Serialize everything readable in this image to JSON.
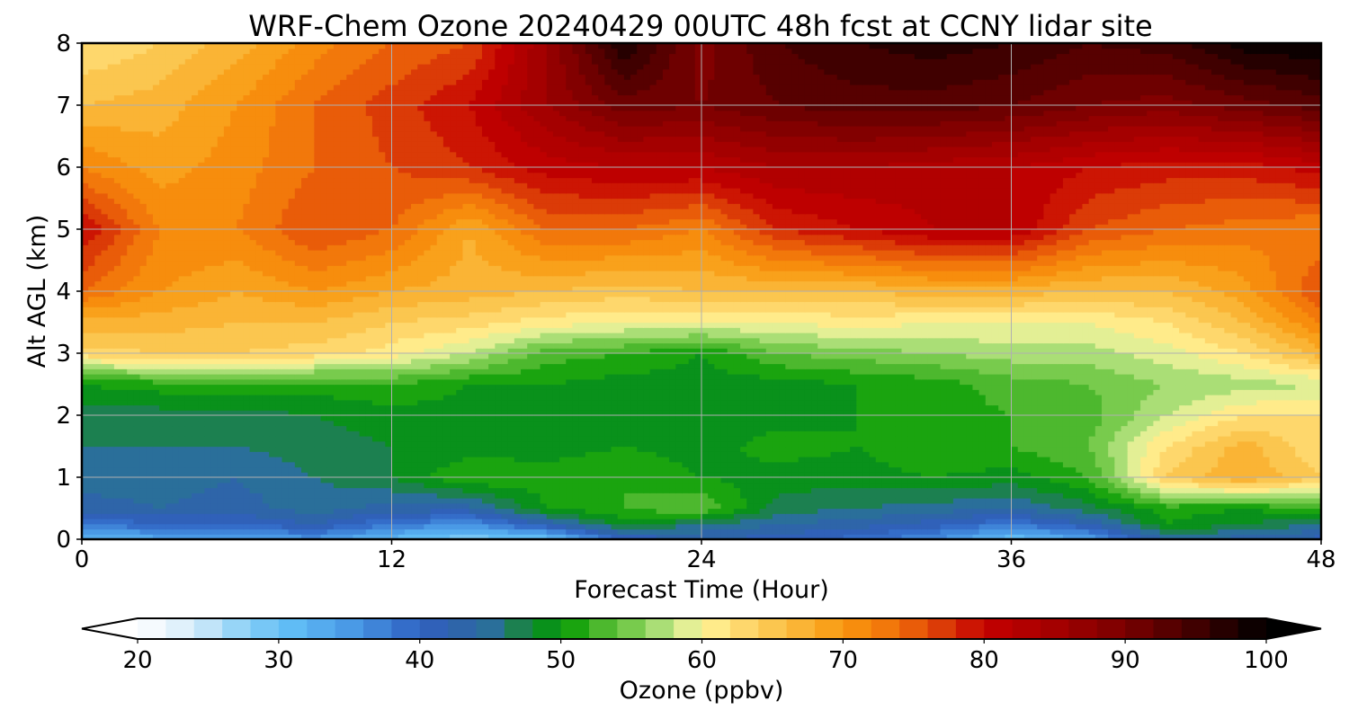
{
  "chart_data": {
    "type": "heatmap",
    "title": "WRF-Chem Ozone  20240429 00UTC 48h fcst at CCNY lidar site",
    "xlabel": "Forecast Time (Hour)",
    "ylabel": "Alt AGL (km)",
    "xlim": [
      0,
      48
    ],
    "ylim": [
      0,
      8
    ],
    "xticks": [
      0,
      12,
      24,
      36,
      48
    ],
    "yticks": [
      0,
      1,
      2,
      3,
      4,
      5,
      6,
      7,
      8
    ],
    "grid": true,
    "x": [
      0,
      3,
      6,
      9,
      12,
      15,
      18,
      21,
      24,
      27,
      30,
      33,
      36,
      39,
      42,
      45,
      48
    ],
    "y": [
      0,
      0.25,
      0.5,
      1,
      1.5,
      2,
      2.5,
      3,
      3.5,
      4,
      5,
      6,
      7,
      8
    ],
    "z_by_altitude": [
      [
        31,
        33,
        34,
        35,
        31,
        28,
        30,
        40,
        42,
        41,
        39,
        36,
        30,
        34,
        44,
        43,
        41
      ],
      [
        38,
        40,
        40,
        42,
        38,
        36,
        42,
        49,
        46,
        44,
        43,
        41,
        38,
        42,
        50,
        48,
        46
      ],
      [
        43,
        44,
        43,
        45,
        43,
        43,
        50,
        52,
        54,
        47,
        46,
        45,
        44,
        47,
        51,
        50,
        52
      ],
      [
        45,
        45,
        44,
        46,
        48,
        52,
        51,
        52,
        50,
        49,
        49,
        50,
        49,
        52,
        64,
        68,
        64
      ],
      [
        46,
        46,
        46,
        47,
        48,
        49,
        49,
        50,
        49,
        51,
        50,
        52,
        52,
        54,
        62,
        67,
        62
      ],
      [
        47,
        47,
        47,
        48,
        49,
        49,
        49,
        49,
        49,
        49,
        50,
        51,
        52,
        53,
        58,
        62,
        62
      ],
      [
        50,
        51,
        52,
        51,
        52,
        50,
        50,
        49,
        49,
        49,
        50,
        51,
        53,
        54,
        56,
        57,
        58
      ],
      [
        63,
        64,
        64,
        63,
        61,
        58,
        53,
        52,
        50,
        54,
        55,
        56,
        57,
        57,
        59,
        62,
        67
      ],
      [
        67,
        67,
        66,
        66,
        64,
        63,
        61,
        60,
        60,
        60,
        61,
        60,
        60,
        60,
        62,
        66,
        72
      ],
      [
        74,
        70,
        68,
        70,
        68,
        67,
        66,
        65,
        66,
        66,
        66,
        67,
        67,
        66,
        66,
        69,
        76
      ],
      [
        80,
        72,
        72,
        76,
        74,
        68,
        74,
        74,
        72,
        78,
        80,
        82,
        82,
        76,
        74,
        73,
        72
      ],
      [
        72,
        69,
        71,
        74,
        76,
        78,
        81,
        82,
        82,
        84,
        84,
        83,
        82,
        80,
        79,
        79,
        81
      ],
      [
        66,
        67,
        70,
        74,
        77,
        80,
        86,
        91,
        90,
        92,
        93,
        93,
        92,
        90,
        89,
        91,
        93
      ],
      [
        62,
        64,
        67,
        71,
        74,
        76,
        86,
        98,
        89,
        94,
        96,
        97,
        96,
        94,
        95,
        99,
        100
      ]
    ],
    "colorbar": {
      "label": "Ozone  (ppbv)",
      "min": 20,
      "max": 100,
      "step": 2,
      "ticks": [
        20,
        30,
        40,
        50,
        60,
        70,
        80,
        90,
        100
      ],
      "extend": "both",
      "colormap_stops": [
        [
          20,
          "#ffffff"
        ],
        [
          24,
          "#d6ecfa"
        ],
        [
          28,
          "#82cdf6"
        ],
        [
          31,
          "#60bcf5"
        ],
        [
          35,
          "#4a9ae6"
        ],
        [
          40,
          "#2f62c2"
        ],
        [
          42,
          "#3060b0"
        ],
        [
          45,
          "#2a6f9a"
        ],
        [
          47,
          "#1c8050"
        ],
        [
          50,
          "#009a00"
        ],
        [
          53,
          "#4db82e"
        ],
        [
          56,
          "#8ed45d"
        ],
        [
          58,
          "#c6e88f"
        ],
        [
          60,
          "#fff59a"
        ],
        [
          62,
          "#ffe07a"
        ],
        [
          65,
          "#fbc64f"
        ],
        [
          70,
          "#f9980e"
        ],
        [
          74,
          "#f06d0a"
        ],
        [
          78,
          "#d42a06"
        ],
        [
          80,
          "#c40000"
        ],
        [
          85,
          "#a40000"
        ],
        [
          90,
          "#7a0000"
        ],
        [
          95,
          "#400000"
        ],
        [
          100,
          "#000000"
        ]
      ]
    }
  }
}
